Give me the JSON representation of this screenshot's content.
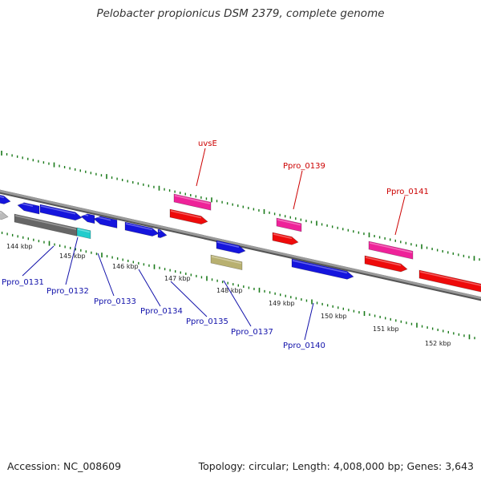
{
  "title": "Pelobacter propionicus DSM 2379, complete genome",
  "footer": {
    "accession": "Accession: NC_008609",
    "summary": "Topology: circular; Length: 4,008,000 bp; Genes: 3,643"
  },
  "colors": {
    "axis": "#7a7a7a",
    "tick": "#1a7a1a",
    "cds_blue": "#1515dd",
    "cds_red": "#ee0b0b",
    "cds_pink": "#ee2299",
    "cds_gray": "#666666",
    "cds_lightgray": "#bbbbbb",
    "cds_cyan": "#22cccc",
    "cds_olive": "#b8b070",
    "label_red": "#cc0000",
    "label_blue": "#1111aa"
  },
  "scale_labels": [
    "144 kbp",
    "145 kbp",
    "146 kbp",
    "147 kbp",
    "148 kbp",
    "149 kbp",
    "150 kbp",
    "151 kbp",
    "152 kbp"
  ],
  "gene_labels": {
    "uvsE": "uvsE",
    "ppro_0139": "Ppro_0139",
    "ppro_0141": "Ppro_0141",
    "ppro_0131": "Ppro_0131",
    "ppro_0132": "Ppro_0132",
    "ppro_0133": "Ppro_0133",
    "ppro_0134": "Ppro_0134",
    "ppro_0135": "Ppro_0135",
    "ppro_0137": "Ppro_0137",
    "ppro_0140": "Ppro_0140"
  }
}
